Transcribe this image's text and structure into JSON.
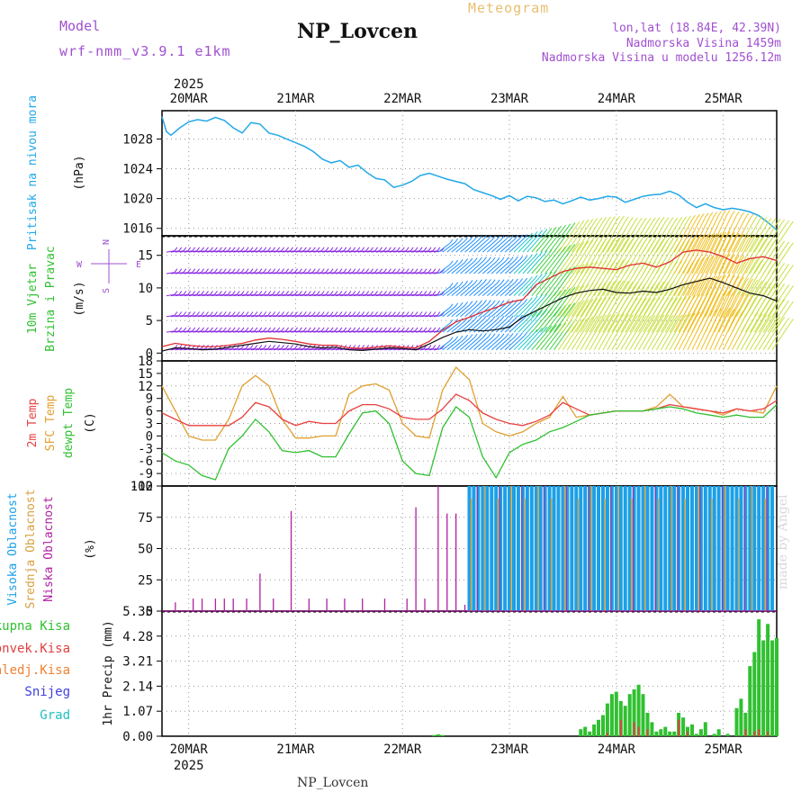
{
  "header": {
    "model_label": "Model",
    "model_version": "wrf-nmm_v3.9.1 e1km",
    "station": "NP_Lovcen",
    "product": "Meteogram",
    "coords": "lon,lat (18.84E, 42.39N)",
    "elevation": "Nadmorska Visina 1459m",
    "model_elevation": "Nadmorska Visina u modelu 1256.12m"
  },
  "footer": {
    "station": "NP_Lovcen",
    "watermark": "made by Angel"
  },
  "time_axis": {
    "year": "2025",
    "days": [
      "20MAR",
      "21MAR",
      "22MAR",
      "23MAR",
      "24MAR",
      "25MAR"
    ],
    "range_hours": [
      -6,
      132
    ]
  },
  "colors": {
    "pressure": "#22a8e8",
    "wind_speed": "#111111",
    "wind_gust": "#e03030",
    "temp2m": "#e84040",
    "sfc_temp": "#e0a030",
    "dewpt": "#30c030",
    "cloud_high": "#1aa0e8",
    "cloud_mid": "#d8a040",
    "cloud_low": "#b020a0",
    "precip_total": "#30c030",
    "precip_conv": "#e04040"
  },
  "chart_data": [
    {
      "type": "line",
      "id": "pressure",
      "ylabel": [
        "Pritisak na nivou mora",
        "(hPa)"
      ],
      "yticks": [
        1016,
        1020,
        1024,
        1028
      ],
      "ylim": [
        1015,
        1031.8
      ],
      "grid": true,
      "series": [
        {
          "x": [
            -6,
            -5,
            -4,
            -2,
            0,
            2,
            4,
            6,
            8,
            10,
            12,
            14,
            16,
            18,
            20,
            22,
            24,
            26,
            28,
            30,
            32,
            34,
            36,
            38,
            40,
            42,
            44,
            46,
            48,
            50,
            52,
            54,
            56,
            58,
            60,
            62,
            64,
            66,
            68,
            70,
            72,
            74,
            76,
            78,
            80,
            82,
            84,
            86,
            88,
            90,
            92,
            94,
            96,
            98,
            100,
            102,
            104,
            106,
            108,
            110,
            112,
            114,
            116,
            118,
            120,
            122,
            124,
            126,
            128,
            130,
            132
          ],
          "y": [
            1031.0,
            1029.0,
            1028.5,
            1029.5,
            1030.3,
            1030.6,
            1030.4,
            1030.9,
            1030.5,
            1029.5,
            1028.8,
            1030.2,
            1030.0,
            1028.8,
            1028.5,
            1028.0,
            1027.5,
            1027.0,
            1026.3,
            1025.3,
            1024.8,
            1025.1,
            1024.2,
            1024.5,
            1023.5,
            1022.7,
            1022.5,
            1021.5,
            1021.8,
            1022.3,
            1023.1,
            1023.4,
            1023.0,
            1022.6,
            1022.3,
            1022.0,
            1021.2,
            1020.8,
            1020.4,
            1019.9,
            1020.4,
            1019.7,
            1020.3,
            1020.1,
            1019.6,
            1019.8,
            1019.3,
            1019.7,
            1020.2,
            1019.8,
            1020.0,
            1020.3,
            1020.2,
            1019.5,
            1019.9,
            1020.3,
            1020.5,
            1020.6,
            1021.0,
            1020.5,
            1019.5,
            1018.8,
            1019.3,
            1018.8,
            1018.5,
            1018.7,
            1018.5,
            1018.2,
            1017.7,
            1016.8,
            1015.8
          ]
        }
      ]
    },
    {
      "type": "line",
      "id": "wind",
      "ylabel": [
        "10m Vjetar",
        "Brzina i Pravac",
        "(m/s)"
      ],
      "direction_legend": [
        "N",
        "W",
        "E",
        "S"
      ],
      "yticks": [
        0,
        5,
        10,
        15
      ],
      "ylim": [
        -1.2,
        18
      ],
      "series": [
        {
          "name": "speed",
          "x": [
            -6,
            -3,
            0,
            3,
            6,
            9,
            12,
            15,
            18,
            21,
            24,
            27,
            30,
            33,
            36,
            39,
            42,
            45,
            48,
            51,
            54,
            57,
            60,
            63,
            66,
            69,
            72,
            75,
            78,
            81,
            84,
            87,
            90,
            93,
            96,
            99,
            102,
            105,
            108,
            111,
            114,
            117,
            120,
            123,
            126,
            129,
            132
          ],
          "y": [
            0.3,
            0.8,
            0.7,
            0.5,
            0.6,
            0.9,
            1.2,
            1.5,
            1.8,
            1.6,
            1.4,
            1.0,
            0.8,
            0.9,
            0.5,
            0.4,
            0.6,
            0.8,
            0.7,
            0.5,
            1.4,
            2.4,
            3.2,
            3.6,
            3.4,
            3.6,
            4.0,
            5.5,
            6.5,
            7.5,
            8.5,
            9.2,
            9.6,
            9.8,
            9.3,
            9.2,
            9.5,
            9.3,
            9.8,
            10.5,
            11.0,
            11.5,
            10.8,
            10.0,
            9.2,
            8.8,
            8.0
          ]
        },
        {
          "name": "gust",
          "x": [
            -6,
            -3,
            0,
            3,
            6,
            9,
            12,
            15,
            18,
            21,
            24,
            27,
            30,
            33,
            36,
            39,
            42,
            45,
            48,
            51,
            54,
            57,
            60,
            63,
            66,
            69,
            72,
            75,
            78,
            81,
            84,
            87,
            90,
            93,
            96,
            99,
            102,
            105,
            108,
            111,
            114,
            117,
            120,
            123,
            126,
            129,
            132
          ],
          "y": [
            1.0,
            1.5,
            1.2,
            1.0,
            1.0,
            1.2,
            1.5,
            2.0,
            2.3,
            2.1,
            1.8,
            1.4,
            1.2,
            1.2,
            0.8,
            0.7,
            0.9,
            1.1,
            0.9,
            0.8,
            1.8,
            3.5,
            4.8,
            5.5,
            6.3,
            7.0,
            7.8,
            8.2,
            10.5,
            11.5,
            12.5,
            13.0,
            13.2,
            13.0,
            12.8,
            13.5,
            13.8,
            13.2,
            14.0,
            15.5,
            15.8,
            15.5,
            14.8,
            13.8,
            14.5,
            14.8,
            14.2
          ]
        }
      ]
    },
    {
      "type": "line",
      "id": "temperature",
      "ylabel": [
        "2m Temp",
        "SFC Temp",
        "dewpt Temp",
        "(C)"
      ],
      "yticks": [
        -12,
        -9,
        -6,
        -3,
        0,
        3,
        6,
        9,
        12,
        15,
        18
      ],
      "ylim": [
        -12,
        18
      ],
      "series": [
        {
          "name": "2m Temp",
          "x": [
            -6,
            -3,
            0,
            3,
            6,
            9,
            12,
            15,
            18,
            21,
            24,
            27,
            30,
            33,
            36,
            39,
            42,
            45,
            48,
            51,
            54,
            57,
            60,
            63,
            66,
            69,
            72,
            75,
            78,
            81,
            84,
            87,
            90,
            93,
            96,
            99,
            102,
            105,
            108,
            111,
            114,
            117,
            120,
            123,
            126,
            129,
            132
          ],
          "y": [
            5.5,
            4.0,
            2.5,
            2.5,
            2.5,
            2.5,
            4.5,
            8.0,
            7.0,
            4.0,
            2.5,
            3.5,
            3.0,
            3.0,
            6.0,
            7.5,
            7.5,
            6.5,
            4.5,
            4.0,
            4.0,
            6.5,
            10.0,
            8.5,
            5.5,
            4.0,
            3.0,
            2.5,
            3.5,
            5.0,
            8.0,
            6.5,
            5.0,
            5.5,
            6.0,
            6.0,
            6.0,
            6.5,
            7.5,
            7.0,
            6.5,
            6.0,
            5.5,
            6.5,
            6.0,
            6.5,
            8.5
          ]
        },
        {
          "name": "SFC Temp",
          "x": [
            -6,
            -3,
            0,
            3,
            6,
            9,
            12,
            15,
            18,
            21,
            24,
            27,
            30,
            33,
            36,
            39,
            42,
            45,
            48,
            51,
            54,
            57,
            60,
            63,
            66,
            69,
            72,
            75,
            78,
            81,
            84,
            87,
            90,
            93,
            96,
            99,
            102,
            105,
            108,
            111,
            114,
            117,
            120,
            123,
            126,
            129,
            132
          ],
          "y": [
            12.0,
            6.0,
            0.0,
            -1.0,
            -1.0,
            4.0,
            12.0,
            14.5,
            12.0,
            4.0,
            -0.5,
            -0.5,
            0.0,
            0.0,
            10.0,
            12.0,
            12.5,
            11.0,
            3.0,
            0.0,
            -0.5,
            11.0,
            16.5,
            13.5,
            3.0,
            1.0,
            0.0,
            1.0,
            3.0,
            4.5,
            9.5,
            4.5,
            5.0,
            5.5,
            6.0,
            6.0,
            6.0,
            7.0,
            10.0,
            7.0,
            6.5,
            6.0,
            5.0,
            6.5,
            6.0,
            5.5,
            12.0
          ]
        },
        {
          "name": "dewpt Temp",
          "x": [
            -6,
            -3,
            0,
            3,
            6,
            9,
            12,
            15,
            18,
            21,
            24,
            27,
            30,
            33,
            36,
            39,
            42,
            45,
            48,
            51,
            54,
            57,
            60,
            63,
            66,
            69,
            72,
            75,
            78,
            81,
            84,
            87,
            90,
            93,
            96,
            99,
            102,
            105,
            108,
            111,
            114,
            117,
            120,
            123,
            126,
            129,
            132
          ],
          "y": [
            -4.0,
            -6.0,
            -7.0,
            -9.5,
            -10.5,
            -3.0,
            0.0,
            4.0,
            1.0,
            -3.5,
            -4.0,
            -3.5,
            -5.0,
            -5.0,
            0.5,
            5.5,
            6.0,
            3.0,
            -6.0,
            -9.0,
            -9.5,
            2.0,
            7.0,
            4.5,
            -5.0,
            -10.0,
            -4.0,
            -2.0,
            -1.0,
            1.0,
            2.0,
            3.5,
            5.0,
            5.5,
            6.0,
            6.0,
            6.0,
            6.5,
            7.0,
            6.5,
            5.5,
            5.0,
            4.5,
            5.0,
            4.5,
            4.5,
            7.5
          ]
        }
      ]
    },
    {
      "type": "bar",
      "id": "clouds",
      "ylabel": [
        "Visoka Oblacnost",
        "Srednja Oblacnost",
        "Niska Oblacnost",
        "(%)"
      ],
      "yticks": [
        0,
        25,
        50,
        75,
        100
      ],
      "ylim": [
        0,
        100
      ],
      "low_sparse": {
        "x": [
          -3,
          1,
          3,
          6,
          8,
          10,
          13,
          16,
          19,
          23,
          27,
          31,
          35,
          39,
          44,
          49,
          51,
          53,
          56,
          58,
          60,
          62
        ],
        "y": [
          7,
          10,
          10,
          10,
          10,
          10,
          10,
          30,
          10,
          80,
          10,
          10,
          10,
          10,
          10,
          10,
          83,
          10,
          100,
          78,
          78,
          5
        ]
      }
    },
    {
      "type": "bar",
      "id": "precip",
      "ylabel": [
        "Ukupna Kisa",
        "Konvek.Kisa",
        "Zaledj.Kisa",
        "Snijeg",
        "Grad",
        "1hr Precip (mm)"
      ],
      "yticks": [
        0,
        1.07,
        2.14,
        3.21,
        4.28,
        5.35
      ],
      "ylim": [
        0,
        5.35
      ],
      "series": [
        {
          "name": "Ukupna Kisa",
          "x": [
            55,
            56,
            57,
            88,
            89,
            90,
            91,
            92,
            93,
            94,
            95,
            96,
            97,
            98,
            99,
            100,
            101,
            102,
            103,
            104,
            105,
            106,
            107,
            108,
            109,
            110,
            111,
            112,
            113,
            114,
            115,
            116,
            118,
            119,
            121,
            123,
            124,
            125,
            126,
            127,
            128,
            129,
            130,
            131,
            132
          ],
          "y": [
            0.05,
            0.08,
            0.05,
            0.3,
            0.4,
            0.2,
            0.5,
            0.7,
            0.9,
            1.4,
            1.8,
            1.9,
            1.5,
            1.3,
            1.8,
            2.0,
            2.2,
            1.8,
            1.0,
            0.6,
            0.2,
            0.3,
            0.4,
            0.2,
            0.2,
            1.0,
            0.8,
            0.4,
            0.5,
            0.1,
            0.3,
            0.6,
            0.1,
            0.3,
            0.1,
            1.2,
            1.6,
            1.0,
            3.0,
            3.6,
            5.0,
            4.1,
            4.8,
            4.1,
            4.2
          ]
        },
        {
          "name": "Konvek.Kisa",
          "x": [
            94,
            97,
            100,
            101,
            103,
            110,
            112,
            125,
            127,
            128,
            130
          ],
          "y": [
            0.15,
            0.7,
            0.6,
            0.4,
            0.3,
            0.7,
            0.2,
            0.3,
            0.2,
            0.3,
            0.2
          ]
        }
      ]
    }
  ]
}
